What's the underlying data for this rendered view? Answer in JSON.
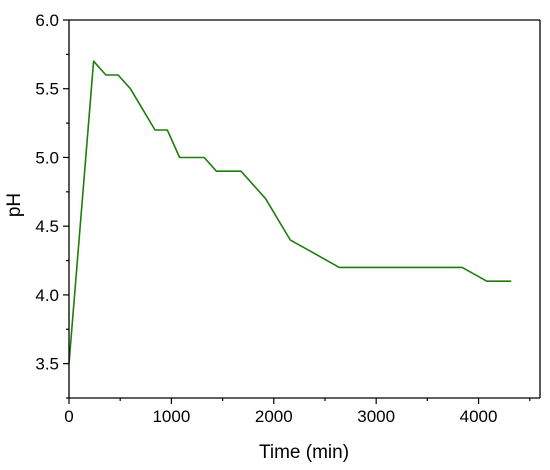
{
  "chart_data": {
    "type": "line",
    "title": "",
    "xlabel": "Time (min)",
    "ylabel": "pH",
    "xlim": [
      0,
      4600
    ],
    "ylim": [
      3.25,
      6.0
    ],
    "x_ticks": [
      0,
      1000,
      2000,
      3000,
      4000
    ],
    "x_tick_labels": [
      "0",
      "1000",
      "2000",
      "3000",
      "4000"
    ],
    "y_ticks": [
      3.5,
      4.0,
      4.5,
      5.0,
      5.5,
      6.0
    ],
    "y_tick_labels": [
      "3.5",
      "4.0",
      "4.5",
      "5.0",
      "5.5",
      "6.0"
    ],
    "grid": false,
    "legend": "none",
    "line_color": "#1e7d0e",
    "series": [
      {
        "x": [
          0,
          240,
          360,
          480,
          600,
          840,
          960,
          1080,
          1320,
          1440,
          1680,
          1920,
          2160,
          2640,
          3840,
          4080,
          4320
        ],
        "y": [
          3.5,
          5.7,
          5.6,
          5.6,
          5.5,
          5.2,
          5.2,
          5.0,
          5.0,
          4.9,
          4.9,
          4.7,
          4.4,
          4.2,
          4.2,
          4.1,
          4.1
        ]
      }
    ]
  }
}
